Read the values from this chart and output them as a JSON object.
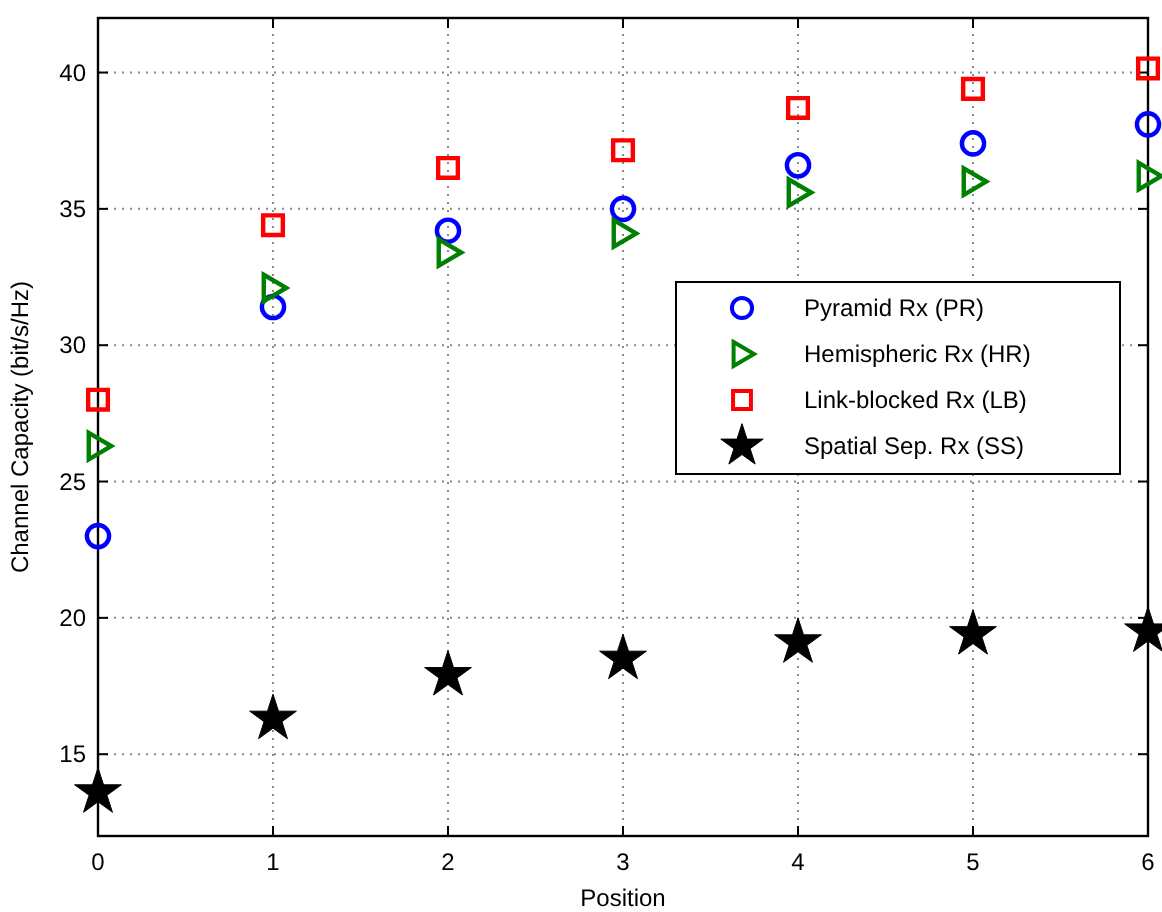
{
  "chart_data": {
    "type": "scatter",
    "xlabel": "Position",
    "ylabel": "Channel Capacity (bit/s/Hz)",
    "x": [
      0,
      1,
      2,
      3,
      4,
      5,
      6
    ],
    "series": [
      {
        "name": "Pyramid Rx (PR)",
        "color": "#0000ff",
        "marker": "circle",
        "values": [
          23.0,
          31.4,
          34.2,
          35.0,
          36.6,
          37.4,
          38.1
        ]
      },
      {
        "name": "Hemispheric Rx (HR)",
        "color": "#008000",
        "marker": "triangle",
        "values": [
          26.3,
          32.1,
          33.4,
          34.1,
          35.6,
          36.0,
          36.2
        ]
      },
      {
        "name": "Link-blocked Rx (LB)",
        "color": "#ff0000",
        "marker": "square",
        "values": [
          28.0,
          34.4,
          36.5,
          37.15,
          38.7,
          39.4,
          40.15
        ]
      },
      {
        "name": "Spatial Sep. Rx (SS)",
        "color": "#000000",
        "marker": "star",
        "values": [
          13.6,
          16.3,
          17.9,
          18.5,
          19.1,
          19.4,
          19.5
        ]
      }
    ],
    "xlim": [
      0,
      6
    ],
    "xticks": [
      0,
      1,
      2,
      3,
      4,
      5,
      6
    ],
    "ylim": [
      12,
      42
    ],
    "yticks": [
      15,
      20,
      25,
      30,
      35,
      40
    ],
    "grid": true,
    "legend": "right"
  }
}
